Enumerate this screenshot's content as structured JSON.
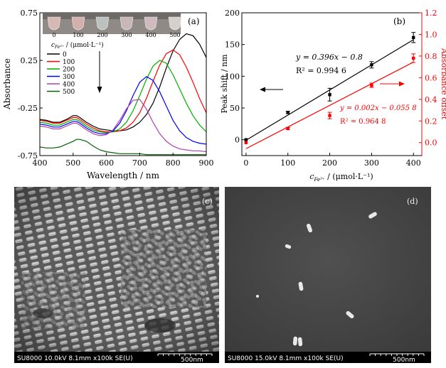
{
  "panel_a": {
    "tag": "(a)",
    "xlabel": "Wavelength / nm",
    "ylabel": "Absorbance",
    "legend_title_prefix": "c",
    "legend_title_sub": "Fe³⁺",
    "legend_title_suffix": " / (μmol·L⁻¹)",
    "photo_labels": [
      "0",
      "100",
      "200",
      "300",
      "400",
      "500"
    ],
    "tube_colors": [
      "#d7b9b4",
      "#d4b0ad",
      "#bcc1c0",
      "#c9b6b9",
      "#cdbbbf",
      "#d4d0cc"
    ]
  },
  "panel_b": {
    "tag": "(b)",
    "xlabel_prefix": "c",
    "xlabel_sub": "Fe³⁺",
    "xlabel_suffix": " / (μmol·L⁻¹)",
    "ylabel_left": "Peak shift / nm",
    "ylabel_right": "Absorbance offset",
    "eq_black": "y = 0.396x − 0.8",
    "r2_black_label": "R² = 0.994 6",
    "eq_red": "y = 0.002x − 0.055 8",
    "r2_red_label": "R² = 0.964 8"
  },
  "panel_c": {
    "tag": "(c)",
    "info": "SU8000 10.0kV 8.1mm x100k SE(U)",
    "scale": "500nm"
  },
  "panel_d": {
    "tag": "(d)",
    "info": "SU8000 15.0kV 8.1mm x100k SE(U)",
    "scale": "500nm"
  },
  "colors": {
    "black": "#000000",
    "red": "#ff0000",
    "blue": "#0000ff",
    "green": "#00a000",
    "magenta": "#b040b0",
    "darkgreen": "#006400"
  },
  "chart_data": [
    {
      "type": "line",
      "panel": "a",
      "xlim": [
        400,
        900
      ],
      "ylim": [
        -0.75,
        0.75
      ],
      "xticks": [
        400,
        500,
        600,
        700,
        800,
        900
      ],
      "yticks": [
        -0.75,
        -0.25,
        0.25,
        0.75
      ],
      "xlabel": "Wavelength / nm",
      "ylabel": "Absorbance",
      "legend_title": "c_Fe3+ / (μmol·L⁻¹)",
      "x": [
        400,
        420,
        440,
        460,
        480,
        500,
        510,
        520,
        540,
        560,
        580,
        600,
        620,
        640,
        660,
        680,
        700,
        720,
        740,
        760,
        780,
        800,
        820,
        840,
        860,
        880,
        900
      ],
      "series": [
        {
          "name": "0",
          "color": "#000000",
          "values": [
            -0.37,
            -0.38,
            -0.4,
            -0.4,
            -0.37,
            -0.33,
            -0.33,
            -0.35,
            -0.4,
            -0.44,
            -0.47,
            -0.48,
            -0.49,
            -0.49,
            -0.48,
            -0.45,
            -0.4,
            -0.32,
            -0.2,
            -0.03,
            0.17,
            0.35,
            0.47,
            0.53,
            0.51,
            0.42,
            0.28
          ]
        },
        {
          "name": "100",
          "color": "#ff0000",
          "values": [
            -0.38,
            -0.39,
            -0.41,
            -0.41,
            -0.38,
            -0.35,
            -0.35,
            -0.37,
            -0.42,
            -0.46,
            -0.49,
            -0.5,
            -0.5,
            -0.49,
            -0.46,
            -0.4,
            -0.3,
            -0.15,
            0.03,
            0.2,
            0.32,
            0.36,
            0.31,
            0.18,
            0.02,
            -0.15,
            -0.3
          ]
        },
        {
          "name": "200",
          "color": "#00b000",
          "values": [
            -0.4,
            -0.41,
            -0.43,
            -0.43,
            -0.4,
            -0.37,
            -0.37,
            -0.39,
            -0.44,
            -0.48,
            -0.5,
            -0.51,
            -0.5,
            -0.47,
            -0.4,
            -0.28,
            -0.12,
            0.05,
            0.19,
            0.25,
            0.22,
            0.1,
            -0.05,
            -0.2,
            -0.33,
            -0.43,
            -0.5
          ]
        },
        {
          "name": "300",
          "color": "#0000ff",
          "values": [
            -0.42,
            -0.43,
            -0.45,
            -0.45,
            -0.42,
            -0.39,
            -0.39,
            -0.41,
            -0.46,
            -0.5,
            -0.52,
            -0.52,
            -0.49,
            -0.41,
            -0.28,
            -0.12,
            0.02,
            0.08,
            0.04,
            -0.08,
            -0.23,
            -0.38,
            -0.49,
            -0.56,
            -0.6,
            -0.62,
            -0.63
          ]
        },
        {
          "name": "400",
          "color": "#b040b0",
          "values": [
            -0.44,
            -0.45,
            -0.47,
            -0.47,
            -0.44,
            -0.41,
            -0.41,
            -0.43,
            -0.48,
            -0.52,
            -0.54,
            -0.53,
            -0.48,
            -0.38,
            -0.26,
            -0.17,
            -0.16,
            -0.26,
            -0.4,
            -0.52,
            -0.6,
            -0.65,
            -0.68,
            -0.69,
            -0.7,
            -0.7,
            -0.71
          ]
        },
        {
          "name": "500",
          "color": "#006400",
          "values": [
            -0.66,
            -0.67,
            -0.67,
            -0.66,
            -0.63,
            -0.6,
            -0.58,
            -0.58,
            -0.6,
            -0.65,
            -0.69,
            -0.71,
            -0.72,
            -0.73,
            -0.73,
            -0.73,
            -0.73,
            -0.74,
            -0.74,
            -0.74,
            -0.74,
            -0.74,
            -0.74,
            -0.74,
            -0.74,
            -0.74,
            -0.74
          ]
        }
      ]
    },
    {
      "type": "scatter",
      "panel": "b",
      "xlim": [
        -10,
        420
      ],
      "xticks": [
        0,
        100,
        200,
        300,
        400
      ],
      "ylim_left": [
        -25,
        200
      ],
      "yticks_left": [
        0,
        50,
        100,
        150,
        200
      ],
      "ylim_right": [
        -0.12,
        1.2
      ],
      "yticks_right": [
        0.0,
        0.2,
        0.4,
        0.6,
        0.8,
        1.0,
        1.2
      ],
      "series": [
        {
          "name": "Peak shift",
          "axis": "left",
          "color": "#000000",
          "x": [
            0,
            100,
            200,
            300,
            400
          ],
          "y": [
            0,
            43,
            71,
            118,
            161
          ],
          "err": [
            0,
            2,
            10,
            5,
            8
          ],
          "fit": [
            [
              0,
              -0.8
            ],
            [
              400,
              157.6
            ]
          ]
        },
        {
          "name": "Absorbance offset",
          "axis": "right",
          "color": "#ff0000",
          "x": [
            0,
            100,
            200,
            300,
            400
          ],
          "y": [
            0.0,
            0.13,
            0.25,
            0.53,
            0.78
          ],
          "err": [
            0.0,
            0.01,
            0.03,
            0.02,
            0.04
          ],
          "fit": [
            [
              0,
              -0.0558
            ],
            [
              400,
              0.7442
            ]
          ]
        }
      ]
    }
  ]
}
